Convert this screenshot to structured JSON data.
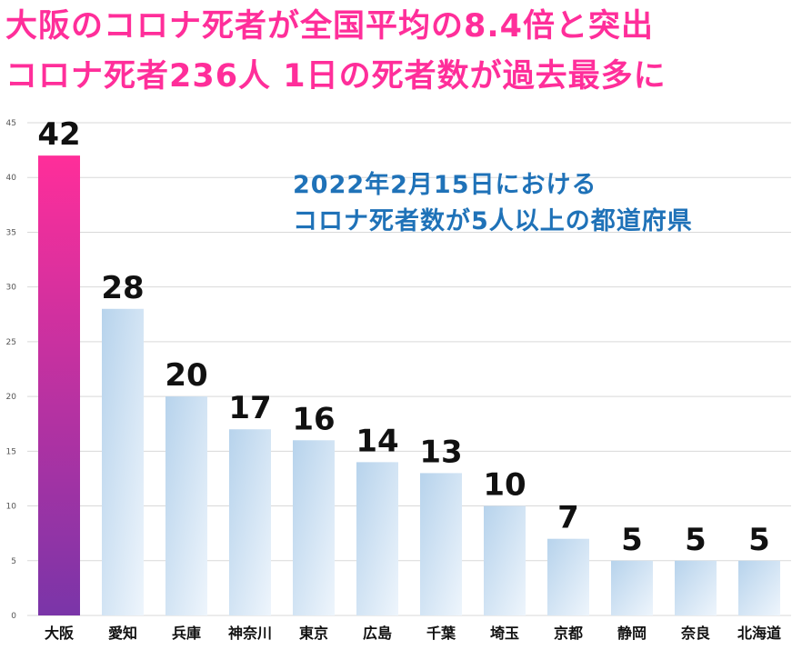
{
  "headline": {
    "line1": "大阪のコロナ死者が全国平均の8.4倍と突出",
    "line2": "コロナ死者236人 1日の死者数が過去最多に"
  },
  "annotation": {
    "line1": "2022年2月15日における",
    "line2": "コロナ死者数が5人以上の都道府県"
  },
  "chart_data": {
    "type": "bar",
    "title": "",
    "xlabel": "",
    "ylabel": "",
    "categories": [
      "大阪",
      "愛知",
      "兵庫",
      "神奈川",
      "東京",
      "広島",
      "千葉",
      "埼玉",
      "京都",
      "静岡",
      "奈良",
      "北海道"
    ],
    "values": [
      42,
      28,
      20,
      17,
      16,
      14,
      13,
      10,
      7,
      5,
      5,
      5
    ],
    "ylim": [
      0,
      45
    ],
    "yticks": [
      0,
      5,
      10,
      15,
      20,
      25,
      30,
      35,
      40,
      45
    ],
    "grid": true,
    "legend": "none",
    "data_labels": true,
    "highlight_category": "大阪",
    "colors": {
      "highlight_top": "#ff2e9a",
      "highlight_bottom": "#7a35a8",
      "bar_top": "#b7d3ec",
      "bar_bottom": "#eef5fc",
      "gridline": "#d9d9d9"
    }
  }
}
